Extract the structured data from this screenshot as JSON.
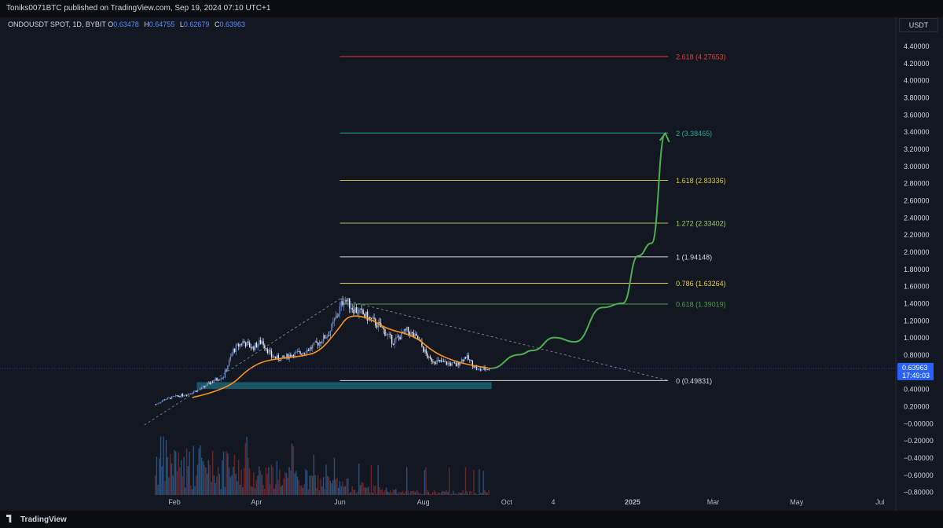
{
  "header": {
    "published": "Toniks0071BTC published on TradingView.com, Sep 19, 2024 07:10 UTC+1"
  },
  "legend": {
    "symbol": "ONDOUSDT SPOT, 1D, BYBIT",
    "o_label": "O",
    "o_value": "0.63478",
    "h_label": "H",
    "h_value": "0.64755",
    "l_label": "L",
    "l_value": "0.62679",
    "c_label": "C",
    "c_value": "0.63963"
  },
  "currency": "USDT",
  "price_badge": {
    "price": "0.63963",
    "countdown": "17:49:03",
    "color": "#2962ff"
  },
  "footer": {
    "brand": "TradingView"
  },
  "colors": {
    "background": "#131722",
    "candle": "#5b7fc4",
    "ma": "#f7931a",
    "projection": "#4caf50",
    "zone": "#1b5e6e"
  },
  "chart_data": {
    "type": "candlestick",
    "symbol": "ONDOUSDT",
    "interval": "1D",
    "exchange": "BYBIT",
    "y_ticks": [
      "4.40000",
      "4.20000",
      "4.00000",
      "3.80000",
      "3.60000",
      "3.40000",
      "3.20000",
      "3.00000",
      "2.80000",
      "2.60000",
      "2.40000",
      "2.20000",
      "2.00000",
      "1.80000",
      "1.60000",
      "1.40000",
      "1.20000",
      "1.00000",
      "0.80000",
      "0.60000",
      "0.40000",
      "0.20000",
      "−0.00000",
      "−0.20000",
      "−0.40000",
      "−0.60000",
      "−0.80000"
    ],
    "x_ticks": [
      "Feb",
      "Apr",
      "Jun",
      "Aug",
      "Oct",
      "4",
      "2025",
      "Mar",
      "May",
      "Jul"
    ],
    "ylim": [
      -0.85,
      4.5
    ],
    "fib_levels": [
      {
        "label": "2.618 (4.27653)",
        "value": 4.27653,
        "color": "#e53935"
      },
      {
        "label": "2 (3.38465)",
        "value": 3.38465,
        "color": "#26a69a"
      },
      {
        "label": "1.618 (2.83336)",
        "value": 2.83336,
        "color": "#d4c23a"
      },
      {
        "label": "1.272 (2.33402)",
        "value": 2.33402,
        "color": "#9ccc65"
      },
      {
        "label": "1 (1.94148)",
        "value": 1.94148,
        "color": "#d1d4dc"
      },
      {
        "label": "0.786 (1.63264)",
        "value": 1.63264,
        "color": "#e6c84a"
      },
      {
        "label": "0.618 (1.39019)",
        "value": 1.39019,
        "color": "#43a047"
      },
      {
        "label": "0 (0.49831)",
        "value": 0.49831,
        "color": "#d1d4dc"
      }
    ],
    "price_path": [
      [
        "2024-01-18",
        0.22
      ],
      [
        "2024-01-25",
        0.28
      ],
      [
        "2024-02-01",
        0.31
      ],
      [
        "2024-02-10",
        0.34
      ],
      [
        "2024-02-20",
        0.4
      ],
      [
        "2024-03-01",
        0.5
      ],
      [
        "2024-03-08",
        0.55
      ],
      [
        "2024-03-15",
        0.85
      ],
      [
        "2024-03-22",
        0.95
      ],
      [
        "2024-03-29",
        0.88
      ],
      [
        "2024-04-05",
        0.96
      ],
      [
        "2024-04-12",
        0.78
      ],
      [
        "2024-04-19",
        0.75
      ],
      [
        "2024-04-26",
        0.8
      ],
      [
        "2024-05-03",
        0.82
      ],
      [
        "2024-05-10",
        0.87
      ],
      [
        "2024-05-17",
        0.95
      ],
      [
        "2024-05-24",
        1.05
      ],
      [
        "2024-05-31",
        1.3
      ],
      [
        "2024-06-04",
        1.46
      ],
      [
        "2024-06-10",
        1.35
      ],
      [
        "2024-06-20",
        1.25
      ],
      [
        "2024-07-01",
        1.12
      ],
      [
        "2024-07-10",
        0.95
      ],
      [
        "2024-07-20",
        1.08
      ],
      [
        "2024-07-28",
        0.98
      ],
      [
        "2024-08-05",
        0.75
      ],
      [
        "2024-08-12",
        0.72
      ],
      [
        "2024-08-25",
        0.68
      ],
      [
        "2024-09-01",
        0.78
      ],
      [
        "2024-09-10",
        0.62
      ],
      [
        "2024-09-19",
        0.64
      ]
    ],
    "ma_path": [
      [
        "2024-02-14",
        0.3
      ],
      [
        "2024-02-29",
        0.36
      ],
      [
        "2024-03-15",
        0.46
      ],
      [
        "2024-03-25",
        0.62
      ],
      [
        "2024-04-05",
        0.72
      ],
      [
        "2024-04-19",
        0.76
      ],
      [
        "2024-05-03",
        0.78
      ],
      [
        "2024-05-17",
        0.83
      ],
      [
        "2024-05-31",
        1.1
      ],
      [
        "2024-06-07",
        1.26
      ],
      [
        "2024-06-21",
        1.24
      ],
      [
        "2024-07-05",
        1.1
      ],
      [
        "2024-07-26",
        1.02
      ],
      [
        "2024-08-09",
        0.82
      ],
      [
        "2024-08-28",
        0.7
      ],
      [
        "2024-09-19",
        0.64
      ]
    ],
    "projection_path": [
      [
        "2024-09-19",
        0.64
      ],
      [
        "2024-10-10",
        0.8
      ],
      [
        "2024-10-20",
        0.85
      ],
      [
        "2024-11-05",
        1.0
      ],
      [
        "2024-11-20",
        0.95
      ],
      [
        "2024-12-10",
        1.35
      ],
      [
        "2024-12-25",
        1.4
      ],
      [
        "2025-01-05",
        1.95
      ],
      [
        "2025-01-15",
        2.1
      ],
      [
        "2025-01-25",
        3.38
      ]
    ],
    "trendlines": [
      {
        "from": [
          "2024-01-10",
          -0.02
        ],
        "to": [
          "2024-06-01",
          1.45
        ]
      },
      {
        "from": [
          "2024-06-01",
          1.45
        ],
        "to": [
          "2025-01-27",
          0.5
        ]
      }
    ],
    "support_zone": {
      "from": "2024-03-01",
      "to": "2024-09-20",
      "low": 0.4,
      "high": 0.48
    }
  }
}
